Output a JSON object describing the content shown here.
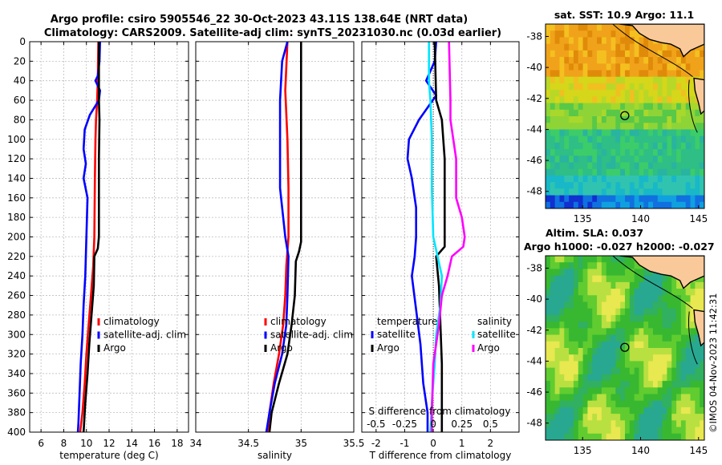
{
  "title_line1": "Argo profile: csiro 5905546_22 30-Oct-2023 43.11S 138.64E (NRT data)",
  "title_line2": "Climatology: CARS2009. Satellite-adj clim: synTS_20231030.nc (0.03d earlier)",
  "stamp": "©IMOS 04-Nov-2023 11:42:31",
  "colors": {
    "clim": "#ff0000",
    "sat": "#0000ff",
    "argo": "#000000",
    "cyan": "#00e5ff",
    "magenta": "#ff00ff"
  },
  "chart_data": [
    {
      "type": "line",
      "id": "temperature",
      "xlabel": "temperature (deg C)",
      "xlim": [
        5,
        19
      ],
      "xticks": [
        "6",
        "8",
        "10",
        "12",
        "14",
        "16",
        "18"
      ],
      "xtick_values": [
        6,
        8,
        10,
        12,
        14,
        16,
        18
      ],
      "ylim": [
        0,
        400
      ],
      "yticks": [
        "0",
        "20",
        "40",
        "60",
        "80",
        "100",
        "120",
        "140",
        "160",
        "180",
        "200",
        "220",
        "240",
        "260",
        "280",
        "300",
        "320",
        "340",
        "360",
        "380",
        "400"
      ],
      "legend": [
        "climatology",
        "satellite-adj. clim",
        "Argo"
      ],
      "series": [
        {
          "name": "climatology",
          "color_key": "clim",
          "points": [
            [
              11.05,
              0
            ],
            [
              11.0,
              40
            ],
            [
              10.95,
              60
            ],
            [
              10.85,
              80
            ],
            [
              10.8,
              100
            ],
            [
              10.75,
              140
            ],
            [
              10.7,
              200
            ],
            [
              10.65,
              215
            ],
            [
              10.6,
              230
            ],
            [
              10.4,
              260
            ],
            [
              10.2,
              290
            ],
            [
              10.0,
              320
            ],
            [
              9.85,
              350
            ],
            [
              9.65,
              380
            ],
            [
              9.45,
              400
            ]
          ]
        },
        {
          "name": "satellite-adj. clim",
          "color_key": "sat",
          "points": [
            [
              11.2,
              0
            ],
            [
              11.15,
              20
            ],
            [
              11.0,
              35
            ],
            [
              10.8,
              40
            ],
            [
              11.2,
              50
            ],
            [
              11.1,
              60
            ],
            [
              10.3,
              75
            ],
            [
              9.85,
              90
            ],
            [
              9.75,
              110
            ],
            [
              9.95,
              125
            ],
            [
              9.75,
              140
            ],
            [
              10.1,
              160
            ],
            [
              10.05,
              180
            ],
            [
              10.0,
              200
            ],
            [
              9.95,
              220
            ],
            [
              9.9,
              240
            ],
            [
              9.75,
              270
            ],
            [
              9.65,
              300
            ],
            [
              9.5,
              330
            ],
            [
              9.4,
              360
            ],
            [
              9.3,
              390
            ],
            [
              9.25,
              400
            ]
          ]
        },
        {
          "name": "Argo",
          "color_key": "argo",
          "points": [
            [
              11.1,
              0
            ],
            [
              11.1,
              60
            ],
            [
              11.15,
              80
            ],
            [
              11.1,
              120
            ],
            [
              11.1,
              160
            ],
            [
              11.1,
              200
            ],
            [
              11.0,
              212
            ],
            [
              10.7,
              220
            ],
            [
              10.65,
              250
            ],
            [
              10.45,
              280
            ],
            [
              10.25,
              310
            ],
            [
              10.1,
              340
            ],
            [
              9.9,
              370
            ],
            [
              9.75,
              400
            ]
          ]
        }
      ]
    },
    {
      "type": "line",
      "id": "salinity",
      "xlabel": "salinity",
      "xlim": [
        34,
        35.5
      ],
      "xticks": [
        "34",
        "34.5",
        "35",
        "35.5"
      ],
      "xtick_values": [
        34,
        34.5,
        35,
        35.5
      ],
      "ylim": [
        0,
        400
      ],
      "legend": [
        "climatology",
        "satellite-adj. clim",
        "Argo"
      ],
      "series": [
        {
          "name": "climatology",
          "color_key": "clim",
          "points": [
            [
              34.87,
              0
            ],
            [
              34.85,
              50
            ],
            [
              34.87,
              100
            ],
            [
              34.88,
              150
            ],
            [
              34.88,
              200
            ],
            [
              34.86,
              230
            ],
            [
              34.85,
              260
            ],
            [
              34.83,
              290
            ],
            [
              34.79,
              320
            ],
            [
              34.74,
              350
            ],
            [
              34.7,
              380
            ],
            [
              34.68,
              400
            ]
          ]
        },
        {
          "name": "satellite-adj. clim",
          "color_key": "sat",
          "points": [
            [
              34.87,
              0
            ],
            [
              34.82,
              20
            ],
            [
              34.8,
              60
            ],
            [
              34.8,
              100
            ],
            [
              34.8,
              150
            ],
            [
              34.85,
              200
            ],
            [
              34.88,
              220
            ],
            [
              34.87,
              260
            ],
            [
              34.86,
              290
            ],
            [
              34.82,
              320
            ],
            [
              34.75,
              350
            ],
            [
              34.7,
              380
            ],
            [
              34.67,
              400
            ]
          ]
        },
        {
          "name": "Argo",
          "color_key": "argo",
          "points": [
            [
              35.0,
              0
            ],
            [
              35.0,
              50
            ],
            [
              35.0,
              100
            ],
            [
              35.0,
              150
            ],
            [
              35.0,
              205
            ],
            [
              34.98,
              215
            ],
            [
              34.95,
              225
            ],
            [
              34.94,
              260
            ],
            [
              34.91,
              290
            ],
            [
              34.87,
              320
            ],
            [
              34.79,
              350
            ],
            [
              34.72,
              380
            ],
            [
              34.7,
              400
            ]
          ]
        }
      ]
    },
    {
      "type": "line",
      "id": "difference",
      "xlabel": "T difference from climatology",
      "xlim": [
        -2.5,
        3
      ],
      "xticks": [
        "-2",
        "-1",
        "0",
        "1",
        "2"
      ],
      "xtick_values": [
        -2,
        -1,
        0,
        1,
        2
      ],
      "s_axis_label": "S difference from climatology",
      "s_ticks": [
        "-0.5",
        "-0.25",
        "0",
        "0.25",
        "0.5"
      ],
      "s_tick_t_positions": [
        -2,
        -1,
        0,
        1,
        2
      ],
      "ylim": [
        0,
        400
      ],
      "legend_temperature_title": "temperature",
      "legend_temperature": [
        "satellite",
        "Argo"
      ],
      "legend_salinity_title": "salinity",
      "legend_salinity": [
        "satellite",
        "Argo"
      ],
      "series": [
        {
          "name": "T satellite",
          "color_key": "sat",
          "points": [
            [
              0.1,
              0
            ],
            [
              0.05,
              20
            ],
            [
              -0.25,
              40
            ],
            [
              0.1,
              55
            ],
            [
              -0.5,
              80
            ],
            [
              -0.85,
              100
            ],
            [
              -0.9,
              120
            ],
            [
              -0.75,
              140
            ],
            [
              -0.6,
              170
            ],
            [
              -0.6,
              200
            ],
            [
              -0.65,
              220
            ],
            [
              -0.75,
              240
            ],
            [
              -0.62,
              270
            ],
            [
              -0.45,
              310
            ],
            [
              -0.35,
              350
            ],
            [
              -0.2,
              380
            ],
            [
              -0.2,
              400
            ]
          ]
        },
        {
          "name": "T Argo",
          "color_key": "argo",
          "points": [
            [
              0.05,
              0
            ],
            [
              0.1,
              60
            ],
            [
              0.3,
              80
            ],
            [
              0.4,
              120
            ],
            [
              0.4,
              170
            ],
            [
              0.4,
              210
            ],
            [
              0.1,
              220
            ],
            [
              0.2,
              250
            ],
            [
              0.25,
              290
            ],
            [
              0.3,
              330
            ],
            [
              0.3,
              370
            ],
            [
              0.3,
              400
            ]
          ]
        },
        {
          "name": "S satellite",
          "color_key": "cyan",
          "points": [
            [
              -0.15,
              0
            ],
            [
              -0.15,
              40
            ],
            [
              -0.1,
              60
            ],
            [
              -0.05,
              100
            ],
            [
              -0.05,
              150
            ],
            [
              0.0,
              200
            ],
            [
              0.3,
              240
            ],
            [
              0.25,
              270
            ],
            [
              0.1,
              300
            ],
            [
              0.05,
              330
            ],
            [
              -0.05,
              370
            ],
            [
              -0.1,
              400
            ]
          ]
        },
        {
          "name": "S Argo",
          "color_key": "magenta",
          "points": [
            [
              0.55,
              0
            ],
            [
              0.6,
              60
            ],
            [
              0.6,
              80
            ],
            [
              0.8,
              120
            ],
            [
              0.8,
              160
            ],
            [
              1.0,
              180
            ],
            [
              1.1,
              200
            ],
            [
              1.05,
              210
            ],
            [
              0.65,
              220
            ],
            [
              0.5,
              240
            ],
            [
              0.3,
              260
            ],
            [
              0.2,
              290
            ],
            [
              0.0,
              330
            ],
            [
              -0.05,
              380
            ],
            [
              -0.05,
              400
            ]
          ]
        }
      ]
    },
    {
      "type": "heatmap",
      "id": "sst_map",
      "title": "sat. SST: 10.9 Argo: 11.1",
      "xticks": [
        "135",
        "140",
        "145"
      ],
      "xtick_values": [
        135,
        140,
        145
      ],
      "yticks": [
        "-38",
        "-40",
        "-42",
        "-44",
        "-46",
        "-48"
      ],
      "ytick_values": [
        -38,
        -40,
        -42,
        -44,
        -46,
        -48
      ],
      "xlim": [
        131.8,
        145.5
      ],
      "ylim": [
        -49.1,
        -37.2
      ],
      "argo_position": [
        138.64,
        -43.11
      ]
    },
    {
      "type": "heatmap",
      "id": "sla_map",
      "title_line1": "Altim. SLA: 0.037",
      "title_line2": "Argo h1000: -0.027 h2000: -0.027",
      "xticks": [
        "135",
        "140",
        "145"
      ],
      "xtick_values": [
        135,
        140,
        145
      ],
      "yticks": [
        "-38",
        "-40",
        "-42",
        "-44",
        "-46",
        "-48"
      ],
      "ytick_values": [
        -38,
        -40,
        -42,
        -44,
        -46,
        -48
      ],
      "xlim": [
        131.8,
        145.5
      ],
      "ylim": [
        -49.1,
        -37.2
      ],
      "argo_position": [
        138.64,
        -43.11
      ]
    }
  ]
}
